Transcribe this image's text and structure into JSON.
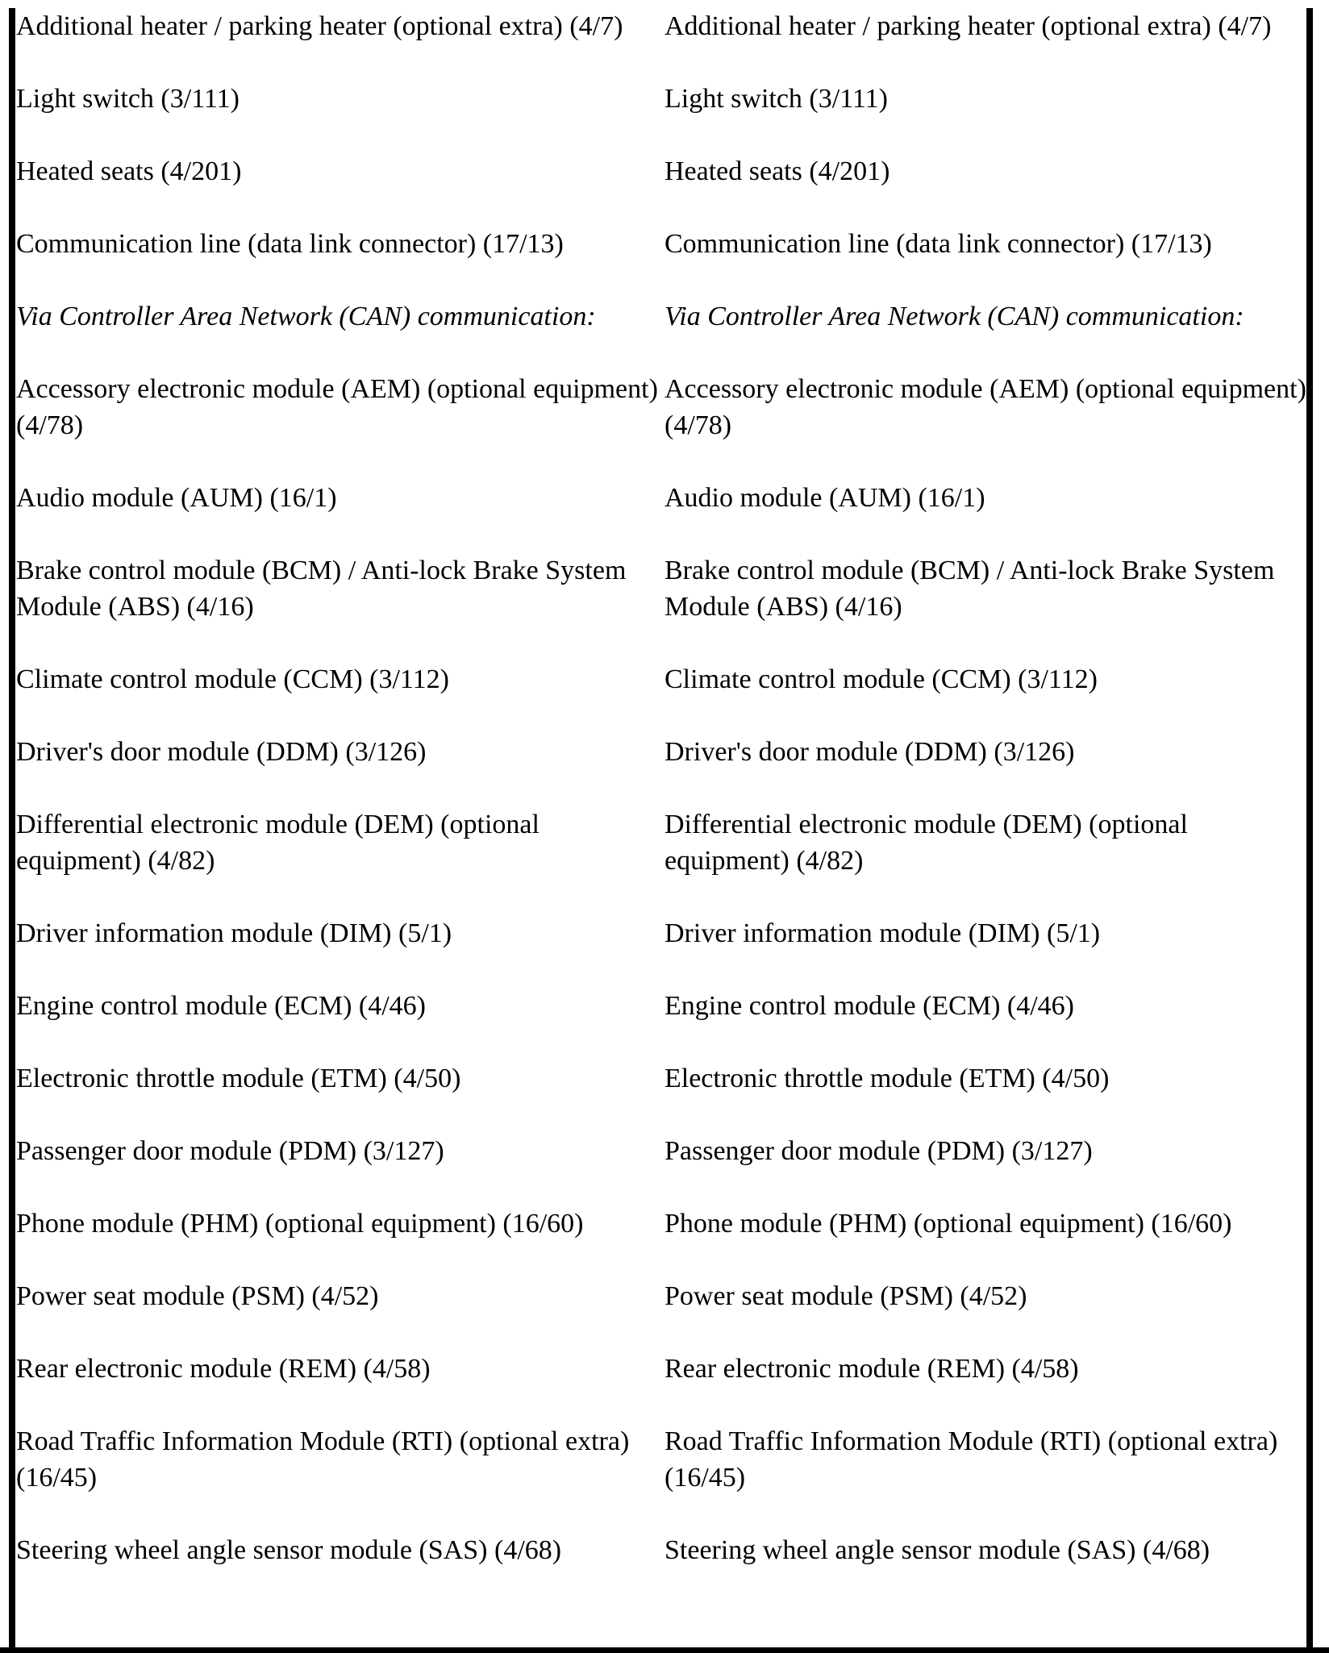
{
  "page": {
    "background": "#ffffff",
    "text_color": "#000000",
    "border_color": "#000000"
  },
  "table": {
    "columns": [
      "left",
      "right"
    ],
    "columns_have_identical_content": true,
    "items": [
      {
        "text": "Additional heater / parking heater (optional extra) (4/7)",
        "italic": false
      },
      {
        "text": "Light switch (3/111)",
        "italic": false
      },
      {
        "text": "Heated seats (4/201)",
        "italic": false
      },
      {
        "text": "Communication line (data link connector) (17/13)",
        "italic": false
      },
      {
        "text": "Via Controller Area Network (CAN) communication:",
        "italic": true
      },
      {
        "text": "Accessory electronic module (AEM) (optional equipment)\n(4/78)",
        "italic": false
      },
      {
        "text": "Audio module (AUM) (16/1)",
        "italic": false
      },
      {
        "text": "Brake control module (BCM) / Anti-lock Brake System\nModule (ABS) (4/16)",
        "italic": false
      },
      {
        "text": "Climate control module (CCM) (3/112)",
        "italic": false
      },
      {
        "text": "Driver's door module (DDM) (3/126)",
        "italic": false
      },
      {
        "text": "Differential electronic module (DEM) (optional\nequipment) (4/82)",
        "italic": false
      },
      {
        "text": "Driver information module (DIM) (5/1)",
        "italic": false
      },
      {
        "text": "Engine control module (ECM) (4/46)",
        "italic": false
      },
      {
        "text": "Electronic throttle module (ETM) (4/50)",
        "italic": false
      },
      {
        "text": "Passenger door module (PDM) (3/127)",
        "italic": false
      },
      {
        "text": "Phone module (PHM) (optional equipment) (16/60)",
        "italic": false
      },
      {
        "text": "Power seat module (PSM) (4/52)",
        "italic": false
      },
      {
        "text": "Rear electronic module (REM) (4/58)",
        "italic": false
      },
      {
        "text": "Road Traffic Information Module (RTI) (optional extra)\n(16/45)",
        "italic": false
      },
      {
        "text": "Steering wheel angle sensor module (SAS) (4/68)",
        "italic": false
      }
    ]
  }
}
